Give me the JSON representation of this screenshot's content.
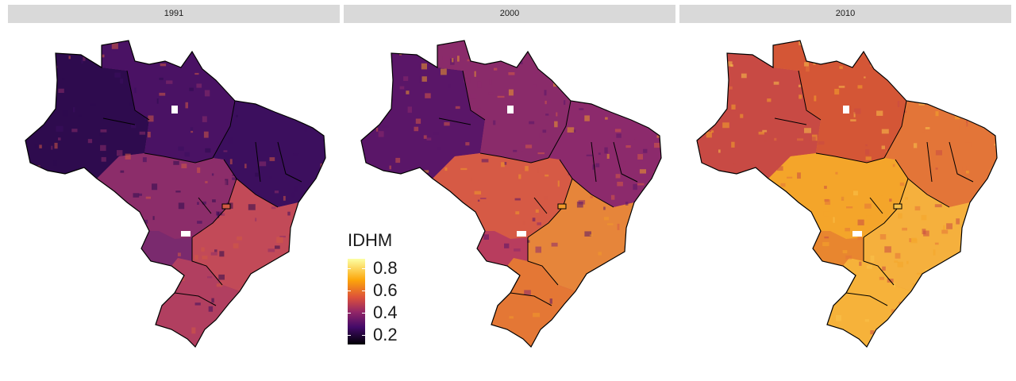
{
  "panels": [
    {
      "label": "1991",
      "fill": "#7a2a6e",
      "north": "#4a1264",
      "west": "#2e0b4e",
      "center": "#8c2d6a",
      "ne": "#3c0f5e",
      "south": "#b13f60",
      "se": "#c24a58",
      "hot": "#d25a44"
    },
    {
      "label": "2000",
      "fill": "#b83d5e",
      "north": "#8a2b6a",
      "west": "#5a1668",
      "center": "#d65a45",
      "ne": "#8c2a6c",
      "south": "#e47735",
      "se": "#e6853a",
      "hot": "#f09a2a"
    },
    {
      "label": "2010",
      "fill": "#e8862f",
      "north": "#d45636",
      "west": "#c84a44",
      "center": "#f4a52a",
      "ne": "#e37538",
      "south": "#f6b23a",
      "se": "#f5b03d",
      "hot": "#f9c24a"
    }
  ],
  "legend": {
    "title": "IDHM",
    "labels": [
      "0.8",
      "0.6",
      "0.4",
      "0.2"
    ]
  }
}
